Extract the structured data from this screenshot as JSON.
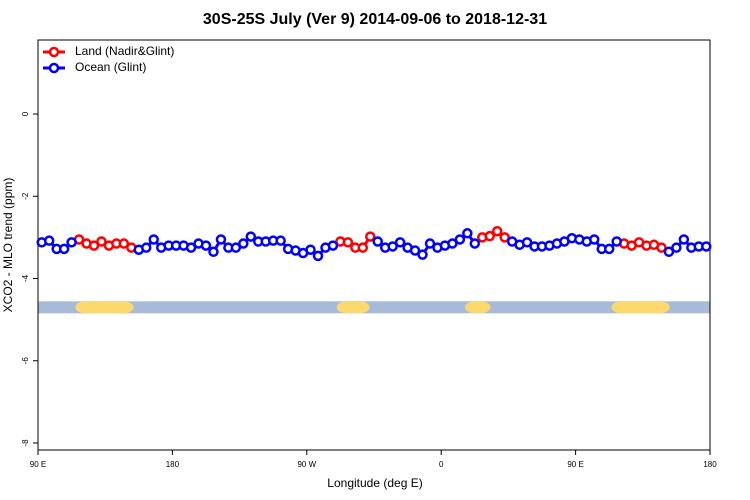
{
  "chart_data": {
    "type": "line",
    "title": "30S-25S July (Ver 9)   2014-09-06 to 2018-12-31",
    "x_label": "Longitude (deg E)",
    "y_label": "XCO2 - MLO trend (ppm)",
    "xlim": [
      90,
      540
    ],
    "ylim": [
      -8.17,
      1.8
    ],
    "xticks": [
      {
        "value": 90,
        "label": "90 E"
      },
      180,
      {
        "value": 270,
        "label": "90 W"
      },
      {
        "value": 360,
        "label": "0"
      },
      {
        "value": 450,
        "label": "90 E"
      },
      {
        "value": 540,
        "label": "180"
      }
    ],
    "yticks": [
      0,
      -2,
      -4,
      -6,
      -8
    ],
    "legend": "top-left",
    "mask": {
      "y": -4.7,
      "ocean_color": "#a7bbd9",
      "land_color": "#fcd96c",
      "land": [
        [
          115,
          154
        ],
        [
          290,
          312
        ],
        [
          376,
          393
        ],
        [
          474,
          513
        ]
      ]
    },
    "x": [
      92.5,
      97.5,
      102.5,
      107.5,
      112.5,
      117.5,
      122.5,
      127.5,
      132.5,
      137.5,
      142.5,
      147.5,
      152.5,
      157.5,
      162.5,
      167.5,
      172.5,
      177.5,
      182.5,
      187.5,
      192.5,
      197.5,
      202.5,
      207.5,
      212.5,
      217.5,
      222.5,
      227.5,
      232.5,
      237.5,
      242.5,
      247.5,
      252.5,
      257.5,
      262.5,
      267.5,
      272.5,
      277.5,
      282.5,
      287.5,
      292.5,
      297.5,
      302.5,
      307.5,
      312.5,
      317.5,
      322.5,
      327.5,
      332.5,
      337.5,
      342.5,
      347.5,
      352.5,
      357.5,
      362.5,
      367.5,
      372.5,
      377.5,
      382.5,
      387.5,
      392.5,
      397.5,
      402.5,
      407.5,
      412.5,
      417.5,
      422.5,
      427.5,
      432.5,
      437.5,
      442.5,
      447.5,
      452.5,
      457.5,
      462.5,
      467.5,
      472.5,
      477.5,
      482.5,
      487.5,
      492.5,
      497.5,
      502.5,
      507.5,
      512.5,
      517.5,
      522.5,
      527.5,
      532.5,
      537.5
    ],
    "series": [
      {
        "name": "Land (Nadir&Glint)",
        "color": "#ff0000",
        "values": [
          null,
          null,
          null,
          null,
          null,
          -3.05,
          -3.15,
          -3.2,
          -3.1,
          -3.2,
          -3.15,
          -3.15,
          -3.25,
          null,
          null,
          null,
          null,
          null,
          null,
          null,
          null,
          null,
          null,
          null,
          null,
          null,
          null,
          null,
          null,
          null,
          null,
          null,
          null,
          null,
          null,
          null,
          null,
          null,
          null,
          null,
          -3.1,
          -3.12,
          -3.25,
          -3.25,
          -2.98,
          null,
          null,
          null,
          null,
          null,
          null,
          null,
          null,
          null,
          null,
          null,
          null,
          null,
          null,
          -3.0,
          -2.97,
          -2.85,
          -3.0,
          null,
          null,
          null,
          null,
          null,
          null,
          null,
          null,
          null,
          null,
          null,
          null,
          null,
          null,
          null,
          -3.15,
          -3.2,
          -3.12,
          -3.2,
          -3.18,
          -3.25,
          null,
          null,
          null,
          null,
          null,
          null
        ]
      },
      {
        "name": "Ocean (Glint)",
        "color": "#0000ff",
        "values": [
          -3.12,
          -3.08,
          -3.28,
          -3.28,
          -3.12,
          null,
          null,
          null,
          null,
          null,
          null,
          null,
          null,
          -3.3,
          -3.25,
          -3.05,
          -3.25,
          -3.2,
          -3.2,
          -3.2,
          -3.25,
          -3.15,
          -3.2,
          -3.35,
          -3.05,
          -3.25,
          -3.25,
          -3.15,
          -2.98,
          -3.1,
          -3.1,
          -3.08,
          -3.08,
          -3.28,
          -3.32,
          -3.38,
          -3.3,
          -3.45,
          -3.25,
          -3.2,
          null,
          null,
          null,
          null,
          null,
          -3.1,
          -3.25,
          -3.22,
          -3.12,
          -3.25,
          -3.32,
          -3.42,
          -3.15,
          -3.25,
          -3.2,
          -3.15,
          -3.05,
          -2.9,
          -3.15,
          null,
          null,
          null,
          null,
          -3.1,
          -3.18,
          -3.12,
          -3.22,
          -3.22,
          -3.2,
          -3.15,
          -3.1,
          -3.02,
          -3.05,
          -3.1,
          -3.05,
          -3.28,
          -3.28,
          -3.1,
          null,
          null,
          null,
          null,
          null,
          null,
          -3.35,
          -3.25,
          -3.05,
          -3.25,
          -3.22,
          -3.22
        ]
      }
    ]
  }
}
